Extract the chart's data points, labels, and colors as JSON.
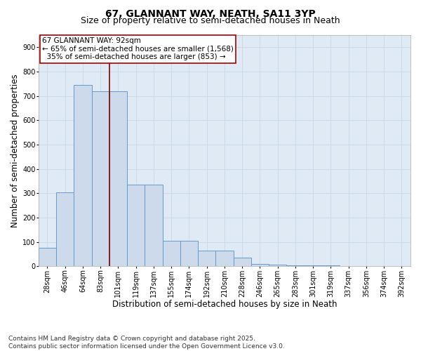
{
  "title": "67, GLANNANT WAY, NEATH, SA11 3YP",
  "subtitle": "Size of property relative to semi-detached houses in Neath",
  "xlabel": "Distribution of semi-detached houses by size in Neath",
  "ylabel": "Number of semi-detached properties",
  "categories": [
    "28sqm",
    "46sqm",
    "64sqm",
    "83sqm",
    "101sqm",
    "119sqm",
    "137sqm",
    "155sqm",
    "174sqm",
    "192sqm",
    "210sqm",
    "228sqm",
    "246sqm",
    "265sqm",
    "283sqm",
    "301sqm",
    "319sqm",
    "337sqm",
    "356sqm",
    "374sqm",
    "392sqm"
  ],
  "values": [
    75,
    305,
    745,
    720,
    720,
    335,
    335,
    105,
    105,
    65,
    65,
    35,
    10,
    8,
    5,
    5,
    5,
    2,
    2,
    2,
    2
  ],
  "bar_color": "#ccdaeb",
  "bar_edge_color": "#6699cc",
  "vline_color": "#880000",
  "annotation_line1": "67 GLANNANT WAY: 92sqm",
  "annotation_line2": "← 65% of semi-detached houses are smaller (1,568)",
  "annotation_line3": "  35% of semi-detached houses are larger (853) →",
  "annotation_box_color": "white",
  "annotation_box_edge_color": "#aa0000",
  "ylim": [
    0,
    950
  ],
  "yticks": [
    0,
    100,
    200,
    300,
    400,
    500,
    600,
    700,
    800,
    900
  ],
  "grid_color": "#c8d8e8",
  "bg_color": "#dce8f5",
  "plot_bg_color": "#e0eaf5",
  "footer": "Contains HM Land Registry data © Crown copyright and database right 2025.\nContains public sector information licensed under the Open Government Licence v3.0.",
  "title_fontsize": 10,
  "subtitle_fontsize": 9,
  "axis_label_fontsize": 8.5,
  "tick_fontsize": 7,
  "annotation_fontsize": 7.5,
  "footer_fontsize": 6.5
}
